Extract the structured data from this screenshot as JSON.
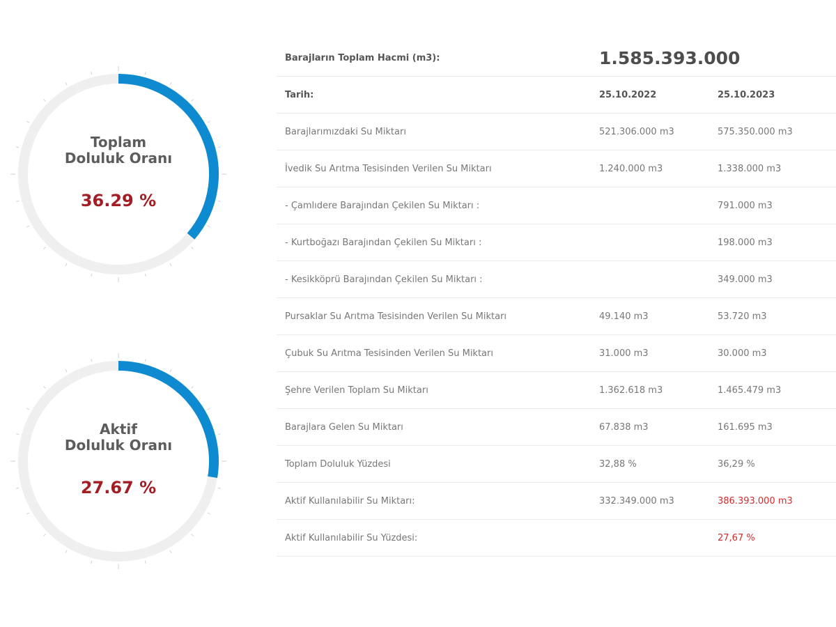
{
  "gauges": [
    {
      "title_line1": "Toplam",
      "title_line2": "Doluluk Oranı",
      "value_text": "36.29 %",
      "fraction": 0.3629
    },
    {
      "title_line1": "Aktif",
      "title_line2": "Doluluk Oranı",
      "value_text": "27.67 %",
      "fraction": 0.2767
    }
  ],
  "colors": {
    "arc": "#0e8bd0",
    "track": "#efefef",
    "tick": "#cfcfcf",
    "value": "#a31d24",
    "highlight": "#d62b2b"
  },
  "table": {
    "volume_label": "Barajların Toplam Hacmi (m3):",
    "volume_value": "1.585.393.000",
    "date_label": "Tarih:",
    "date_a": "25.10.2022",
    "date_b": "25.10.2023",
    "rows": [
      {
        "label": "Barajlarımızdaki Su Miktarı",
        "a": "521.306.000 m3",
        "b": "575.350.000 m3"
      },
      {
        "label": "İvedik Su Arıtma Tesisinden Verilen Su Miktarı",
        "a": "1.240.000 m3",
        "b": "1.338.000 m3"
      },
      {
        "label": "- Çamlıdere Barajından Çekilen Su Miktarı :",
        "a": "",
        "b": "791.000 m3"
      },
      {
        "label": "- Kurtboğazı Barajından Çekilen Su Miktarı :",
        "a": "",
        "b": "198.000 m3"
      },
      {
        "label": "- Kesikköprü Barajından Çekilen Su Miktarı :",
        "a": "",
        "b": "349.000 m3"
      },
      {
        "label": "Pursaklar Su Arıtma Tesisinden Verilen Su Miktarı",
        "a": "49.140 m3",
        "b": "53.720 m3"
      },
      {
        "label": "Çubuk Su Arıtma Tesisinden Verilen Su Miktarı",
        "a": "31.000 m3",
        "b": "30.000 m3"
      },
      {
        "label": "Şehre Verilen Toplam Su Miktarı",
        "a": "1.362.618 m3",
        "b": "1.465.479 m3"
      },
      {
        "label": "Barajlara Gelen Su Miktarı",
        "a": "67.838 m3",
        "b": "161.695 m3"
      },
      {
        "label": "Toplam Doluluk Yüzdesi",
        "a": "32,88 %",
        "b": "36,29 %"
      },
      {
        "label": "Aktif Kullanılabilir Su Miktarı:",
        "a": "332.349.000 m3",
        "b": "386.393.000 m3"
      },
      {
        "label": "Aktif Kullanılabilir Su Yüzdesi:",
        "a": "",
        "b": "27,67 %"
      }
    ]
  }
}
